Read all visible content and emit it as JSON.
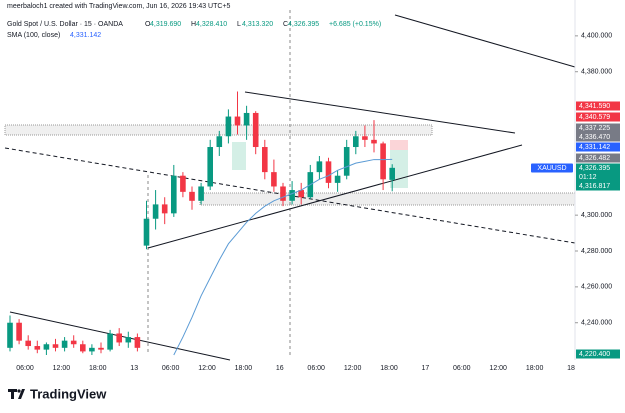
{
  "chart_data": {
    "type": "candlestick",
    "header": "meerbaloch1 created with TradingView.com, Jun 16, 2026 19:43 UTC+5",
    "symbol": "Gold Spot / U.S. Dollar · 15 · OANDA",
    "ohlc_legend": [
      {
        "key": "O",
        "value": "4,319.690"
      },
      {
        "key": "H",
        "value": "4,328.410"
      },
      {
        "key": "L",
        "value": "4,313.320"
      },
      {
        "key": "C",
        "value": "4,326.395"
      }
    ],
    "change": "+6.685 (+0.15%)",
    "sma_name": "SMA (100, close)",
    "sma_value": "4,331.142",
    "up_color": "#089981",
    "down_color": "#f23645",
    "sma_color": "#5b9bd5",
    "candles": {
      "open": [
        4226,
        4240,
        4230,
        4227,
        4225,
        4228,
        4226,
        4230,
        4228,
        4224,
        4226,
        4225,
        4234,
        4229,
        4232,
        4283,
        4298,
        4306,
        4301,
        4322,
        4313,
        4308,
        4316,
        4338,
        4344,
        4355,
        4350,
        4357,
        4338,
        4324,
        4316,
        4308,
        4314,
        4310,
        4324,
        4330,
        4318,
        4322,
        4338,
        4344,
        4342,
        4340,
        4319.69
      ],
      "high": [
        4244,
        4242,
        4233,
        4230,
        4229,
        4231,
        4232,
        4233,
        4230,
        4228,
        4229,
        4236,
        4237,
        4235,
        4234,
        4308,
        4314,
        4310,
        4328,
        4324,
        4316,
        4318,
        4342,
        4347,
        4359,
        4369,
        4361,
        4358,
        4342,
        4331,
        4318,
        4319,
        4318,
        4328,
        4333,
        4332,
        4325,
        4342,
        4347,
        4350,
        4353,
        4341,
        4328.41
      ],
      "low": [
        4224,
        4228,
        4225,
        4223,
        4222,
        4224,
        4224,
        4226,
        4223,
        4222,
        4223,
        4224,
        4227,
        4226,
        4224,
        4281,
        4292,
        4295,
        4299,
        4310,
        4303,
        4306,
        4314,
        4333,
        4340,
        4345,
        4342,
        4334,
        4320,
        4313,
        4305,
        4306,
        4306,
        4309,
        4320,
        4315,
        4313,
        4320,
        4334,
        4338,
        4335,
        4314,
        4313.32
      ],
      "close": [
        4240,
        4230,
        4227,
        4225,
        4228,
        4226,
        4230,
        4228,
        4224,
        4226,
        4225,
        4234,
        4229,
        4232,
        4226,
        4298,
        4306,
        4301,
        4322,
        4313,
        4308,
        4316,
        4338,
        4344,
        4355,
        4350,
        4357,
        4338,
        4324,
        4316,
        4308,
        4314,
        4310,
        4324,
        4330,
        4318,
        4322,
        4338,
        4344,
        4342,
        4340,
        4320,
        4326.395
      ]
    },
    "sma": [
      null,
      null,
      null,
      null,
      null,
      null,
      null,
      null,
      null,
      null,
      null,
      null,
      null,
      null,
      null,
      null,
      null,
      null,
      4222,
      4232,
      4243,
      4255,
      4265,
      4275,
      4284,
      4290,
      4296,
      4301,
      4305,
      4308,
      4310,
      4312,
      4314,
      4317,
      4320,
      4322,
      4325,
      4327,
      4329,
      4330,
      4331,
      4331,
      4331.142
    ],
    "ylim": [
      4222,
      4420
    ],
    "yticks": [
      {
        "value": 4400,
        "label": "4,400.000"
      },
      {
        "value": 4380,
        "label": "4,380.000"
      },
      {
        "value": 4300,
        "label": "4,300.000"
      },
      {
        "value": 4280,
        "label": "4,280.000"
      },
      {
        "value": 4260,
        "label": "4,260.000"
      },
      {
        "value": 4240,
        "label": "4,240.000"
      }
    ],
    "time_labels": [
      "06:00",
      "12:00",
      "18:00",
      "13",
      "06:00",
      "12:00",
      "18:00",
      "16",
      "06:00",
      "12:00",
      "18:00",
      "17",
      "06:00",
      "12:00",
      "18:00",
      "18"
    ],
    "price_labels": [
      {
        "label": "4,341.590",
        "color": "#f23645"
      },
      {
        "label": "4,340.579",
        "color": "#f23645"
      },
      {
        "label": "4,337.225",
        "color": "#787b86"
      },
      {
        "label": "4,336.470",
        "color": "#787b86"
      },
      {
        "label": "4,331.142",
        "color": "#2962ff"
      },
      {
        "label": "4,326.482",
        "color": "#787b86"
      },
      {
        "label": "4,326.395",
        "color": "#089981",
        "sub": "01:12"
      },
      {
        "label": "4,316.817",
        "color": "#089981"
      },
      {
        "label": "4,220.400",
        "color": "#089981"
      }
    ],
    "symbol_tag": "XAUUSD",
    "brand": "TradingView"
  }
}
